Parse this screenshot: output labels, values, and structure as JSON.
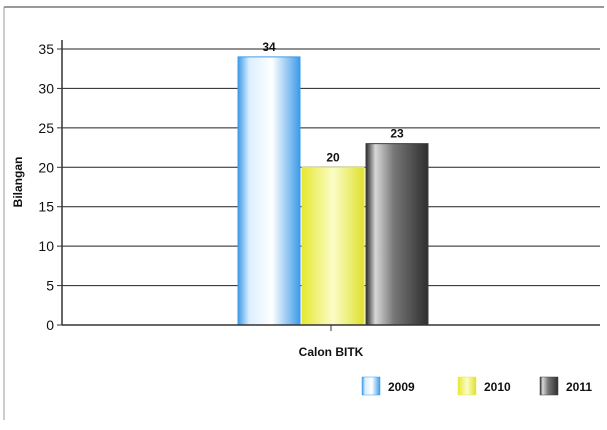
{
  "chart_data": {
    "type": "bar",
    "categories": [
      "Calon BITK"
    ],
    "series": [
      {
        "name": "2009",
        "values": [
          34
        ],
        "color": "#3d9be9"
      },
      {
        "name": "2010",
        "values": [
          20
        ],
        "color": "#e8ea3a"
      },
      {
        "name": "2011",
        "values": [
          23
        ],
        "color": "#3e3e3e"
      }
    ],
    "title": "",
    "xlabel": "Calon BITK",
    "ylabel": "Bilangan",
    "ylim": [
      0,
      35
    ],
    "yticks": [
      0,
      5,
      10,
      15,
      20,
      25,
      30,
      35
    ],
    "grid": true,
    "legend": "bottom-right",
    "data_labels": [
      "34",
      "20",
      "23"
    ]
  }
}
